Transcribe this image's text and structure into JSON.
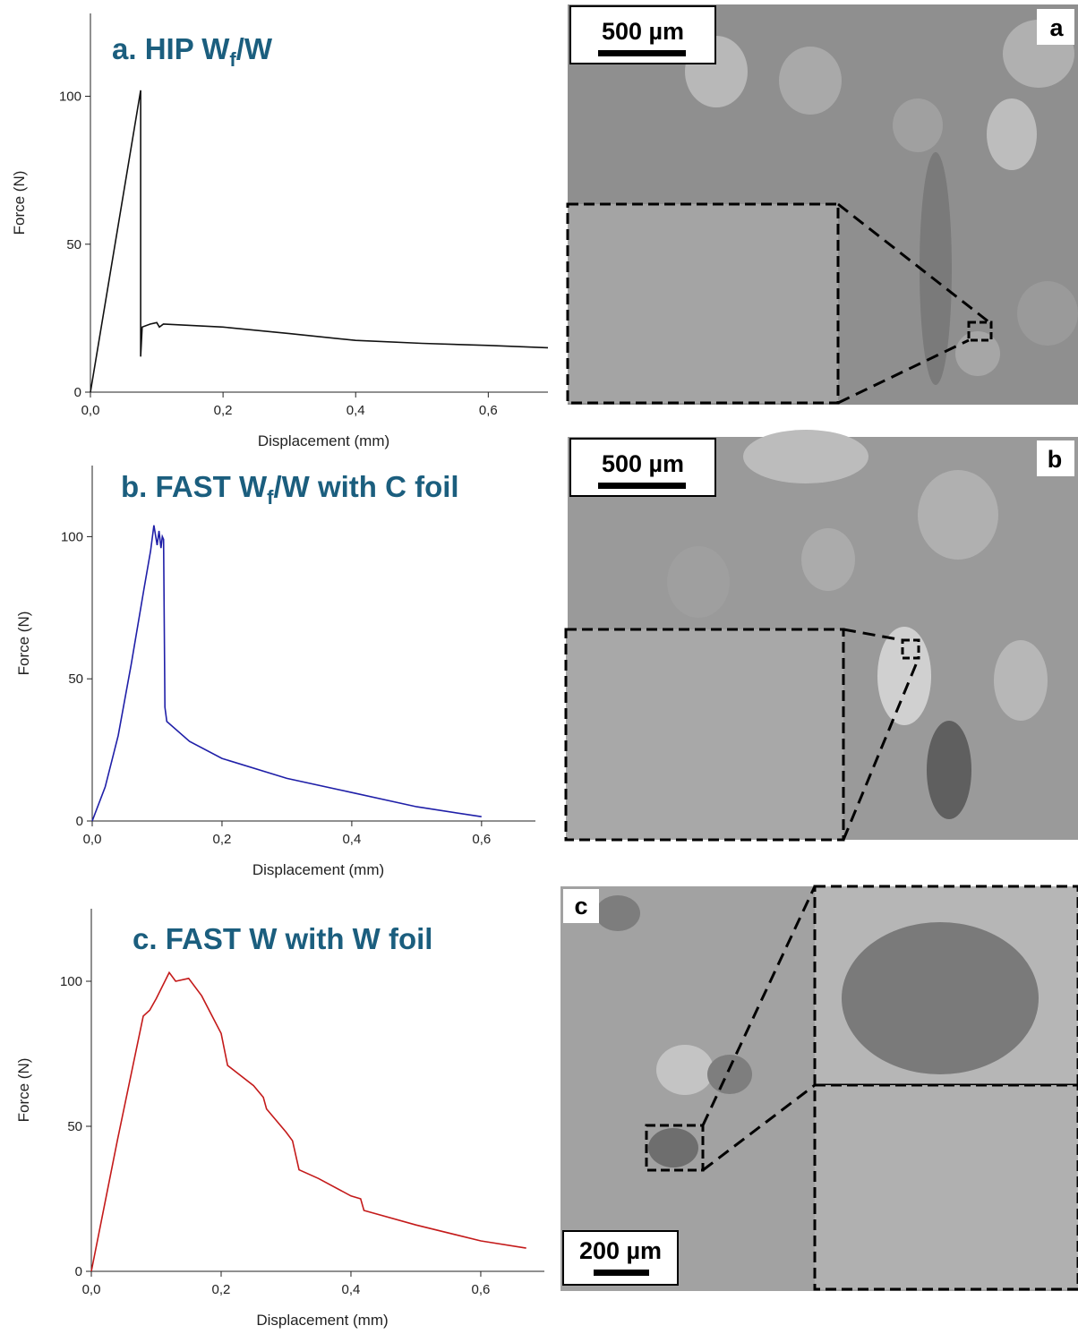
{
  "chart_data": [
    {
      "type": "line",
      "title": [
        "a. HIP W",
        "f",
        "/W"
      ],
      "x_label": "Displacement (mm)",
      "y_label": "Force (N)",
      "x": [
        0,
        0.0757,
        0.0757,
        0.078,
        0.09,
        0.1,
        0.104,
        0.11,
        0.2,
        0.3,
        0.4,
        0.5,
        0.6,
        0.69
      ],
      "values": [
        0,
        102,
        12,
        22,
        23,
        23.5,
        22,
        23,
        22,
        19.8,
        17.5,
        16.5,
        15.8,
        15
      ],
      "color": "#111111",
      "xlim": [
        0,
        0.69
      ],
      "ylim": [
        0,
        128
      ],
      "xticks": [
        {
          "value": 0,
          "label": "0,0"
        },
        {
          "value": 0.2,
          "label": "0,2"
        },
        {
          "value": 0.4,
          "label": "0,4"
        },
        {
          "value": 0.6,
          "label": "0,6"
        }
      ],
      "yticks": [
        0,
        50,
        100
      ]
    },
    {
      "type": "line",
      "title": [
        "b. FAST W",
        "f",
        "/W with C foil"
      ],
      "x_label": "Displacement (mm)",
      "y_label": "Force (N)",
      "x": [
        0,
        0.02,
        0.04,
        0.06,
        0.08,
        0.09,
        0.095,
        0.1,
        0.103,
        0.106,
        0.108,
        0.11,
        0.112,
        0.115,
        0.15,
        0.2,
        0.3,
        0.4,
        0.5,
        0.6
      ],
      "values": [
        0,
        12,
        30,
        55,
        82,
        95,
        104,
        97,
        102,
        96,
        100,
        99,
        40,
        35,
        28,
        22,
        15,
        10,
        5,
        1.5
      ],
      "color": "#1f1fa8",
      "xlim": [
        0,
        0.683
      ],
      "ylim": [
        0,
        125
      ],
      "xticks": [
        {
          "value": 0,
          "label": "0,0"
        },
        {
          "value": 0.2,
          "label": "0,2"
        },
        {
          "value": 0.4,
          "label": "0,4"
        },
        {
          "value": 0.6,
          "label": "0,6"
        }
      ],
      "yticks": [
        0,
        50,
        100
      ]
    },
    {
      "type": "line",
      "title": [
        "c. FAST W with W foil"
      ],
      "x_label": "Displacement (mm)",
      "y_label": "Force (N)",
      "x": [
        0,
        0.04,
        0.08,
        0.09,
        0.1,
        0.12,
        0.13,
        0.15,
        0.17,
        0.2,
        0.21,
        0.25,
        0.265,
        0.27,
        0.3,
        0.31,
        0.32,
        0.35,
        0.4,
        0.415,
        0.42,
        0.5,
        0.6,
        0.67
      ],
      "values": [
        0,
        45,
        88,
        90,
        94,
        103,
        100,
        101,
        95,
        82,
        71,
        64,
        60,
        56,
        48,
        45,
        35,
        32,
        26,
        25,
        21,
        16,
        10.5,
        8
      ],
      "color": "#c41a1a",
      "xlim": [
        0,
        0.698
      ],
      "ylim": [
        0,
        125
      ],
      "xticks": [
        {
          "value": 0,
          "label": "0,0"
        },
        {
          "value": 0.2,
          "label": "0,2"
        },
        {
          "value": 0.4,
          "label": "0,4"
        },
        {
          "value": 0.6,
          "label": "0,6"
        }
      ],
      "yticks": [
        0,
        50,
        100
      ]
    }
  ],
  "images": [
    {
      "label": "a",
      "scale_bar": "500 µm"
    },
    {
      "label": "b",
      "scale_bar": "500 µm"
    },
    {
      "label": "c",
      "scale_bar": "200 µm"
    }
  ]
}
